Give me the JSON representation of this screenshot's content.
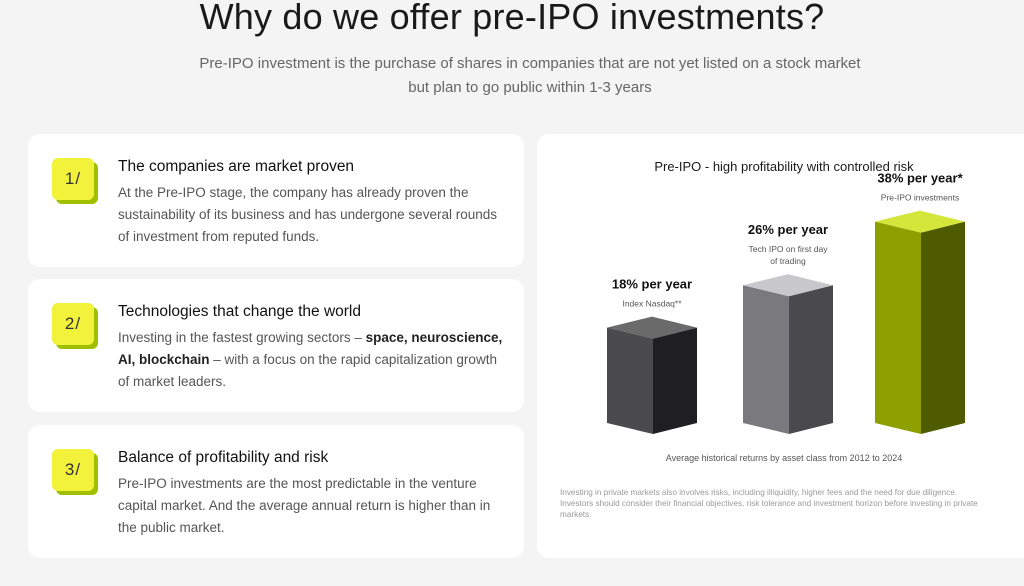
{
  "header": {
    "title": "Why do we offer pre-IPO investments?",
    "subtitle": "Pre-IPO investment is the purchase of shares in companies that are not yet listed on a stock market but plan to go public within 1-3 years"
  },
  "cards": [
    {
      "badge": "1/",
      "title": "The companies are market proven",
      "text": "At the Pre-IPO stage, the company has already proven the sustainability of its business and has undergone several rounds of investment from reputed funds."
    },
    {
      "badge": "2/",
      "title": "Technologies that change the world",
      "text_before": "Investing in the fastest growing sectors – ",
      "text_bold": "space, neuroscience, AI, blockchain",
      "text_after": " – with a focus on the rapid capitalization growth of market leaders."
    },
    {
      "badge": "3/",
      "title": "Balance of profitability and risk",
      "text": "Pre-IPO investments are the most predictable in the venture capital market. And the average annual return is higher than in the public market."
    }
  ],
  "chart_data": {
    "type": "bar",
    "title": "Pre-IPO - high profitability with controlled risk",
    "caption": "Average historical returns by asset class from 2012 to 2024",
    "unit": "% per year",
    "categories": [
      "Index Nasdaq**",
      "Tech IPO on first day of trading",
      "Pre-IPO investments"
    ],
    "category_lines": [
      [
        "Index Nasdaq**"
      ],
      [
        "Tech IPO on first day",
        "of trading"
      ],
      [
        "Pre-IPO investments"
      ]
    ],
    "values": [
      18,
      26,
      38
    ],
    "value_labels": [
      "18% per year",
      "26% per year",
      "38% per year*"
    ],
    "colors": {
      "nasdaq": {
        "top": "#6a6a6a",
        "front": "#4b4b4d",
        "side": "#1f1f21"
      },
      "tech_ipo": {
        "top": "#c8c8cc",
        "front": "#7a7a7e",
        "side": "#4a4a4d"
      },
      "pre_ipo": {
        "top": "#d4e63a",
        "front": "#8e9f00",
        "side": "#4f5b00"
      }
    }
  },
  "disclaimer": {
    "line1": "Investing in private markets also involves risks, including illiquidity, higher fees and the need for due diligence.",
    "line2": "Investors should consider their financial objectives, risk tolerance and investment horizon before investing in private markets."
  },
  "colors": {
    "accent": "#f2f23a",
    "accent_shadow": "#9fbf00",
    "background": "#f4f4f4",
    "card": "#ffffff"
  }
}
